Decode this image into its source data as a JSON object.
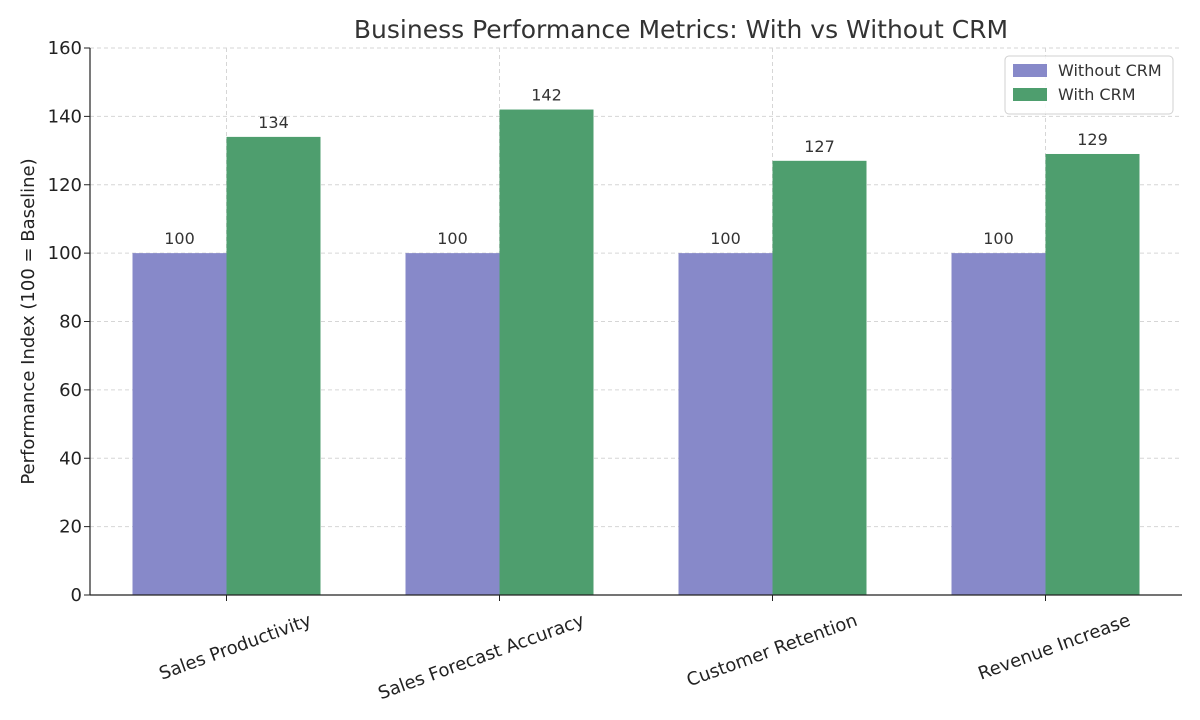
{
  "chart_data": {
    "type": "bar",
    "title": "Business Performance Metrics: With vs Without CRM",
    "xlabel": "",
    "ylabel": "Performance Index (100 = Baseline)",
    "categories": [
      "Sales Productivity",
      "Sales Forecast Accuracy",
      "Customer Retention",
      "Revenue Increase"
    ],
    "series": [
      {
        "name": "Without CRM",
        "values": [
          100,
          100,
          100,
          100
        ],
        "color": "#8789c9"
      },
      {
        "name": "With CRM",
        "values": [
          134,
          142,
          127,
          129
        ],
        "color": "#4e9e6e"
      }
    ],
    "ylim": [
      0,
      160
    ],
    "yticks": [
      0,
      20,
      40,
      60,
      80,
      100,
      120,
      140,
      160
    ],
    "grid": true,
    "legend_position": "top-right",
    "data_labels": true
  }
}
